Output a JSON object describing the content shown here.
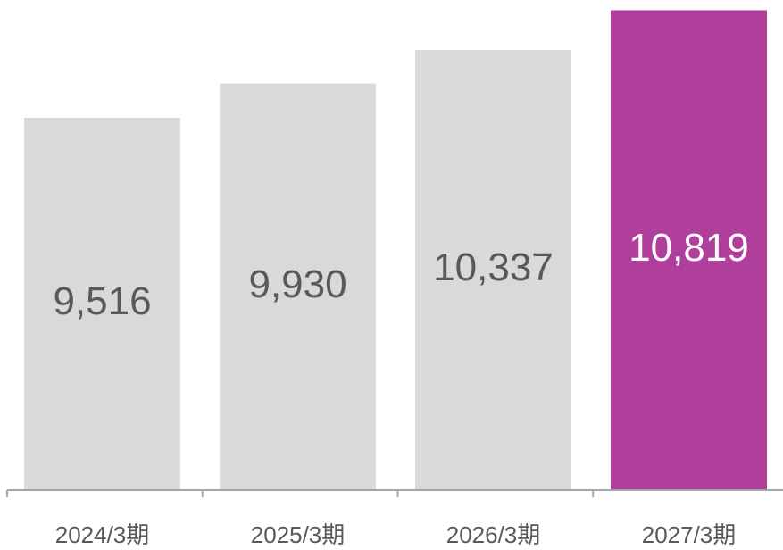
{
  "chart_data": {
    "type": "bar",
    "categories": [
      "2024/3期",
      "2025/3期",
      "2026/3期",
      "2027/3期"
    ],
    "values": [
      9516,
      9930,
      10337,
      10819
    ],
    "value_labels": [
      "9,516",
      "9,930",
      "10,337",
      "10,819"
    ],
    "colors": [
      "#d9d9d9",
      "#d9d9d9",
      "#d9d9d9",
      "#b03f9b"
    ],
    "label_colors": [
      "#595959",
      "#595959",
      "#595959",
      "#ffffff"
    ],
    "ylim": [
      5000,
      10900
    ]
  }
}
